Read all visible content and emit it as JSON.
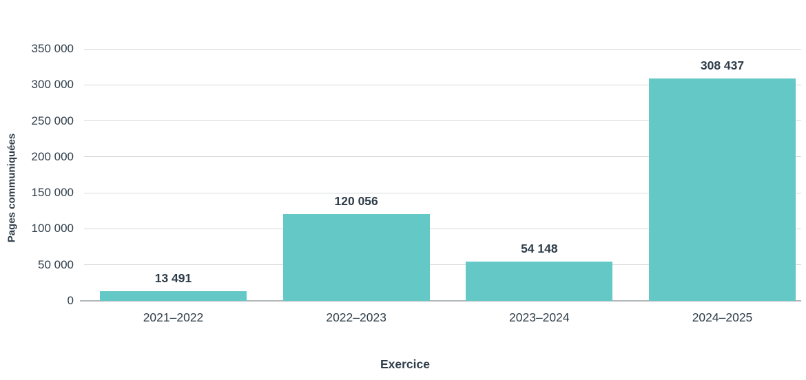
{
  "chart_data": {
    "type": "bar",
    "categories": [
      "2021–2022",
      "2022–2023",
      "2023–2024",
      "2024–2025"
    ],
    "values": [
      13491,
      120056,
      54148,
      308437
    ],
    "value_labels": [
      "13 491",
      "120 056",
      "54 148",
      "308 437"
    ],
    "title": "",
    "xlabel": "Exercice",
    "ylabel": "Pages communiquées",
    "ylim": [
      0,
      350000
    ],
    "ytick_interval": 50000,
    "ytick_labels": [
      "0",
      "50 000",
      "100 000",
      "150 000",
      "200 000",
      "250 000",
      "300 000",
      "350 000"
    ],
    "grid": true,
    "legend": false,
    "colors": {
      "bar": "#63c8c6",
      "gridline": "#d3d8db",
      "baseline": "#b1b6b8",
      "text": "#2e3d49",
      "background": "#ffffff"
    }
  }
}
